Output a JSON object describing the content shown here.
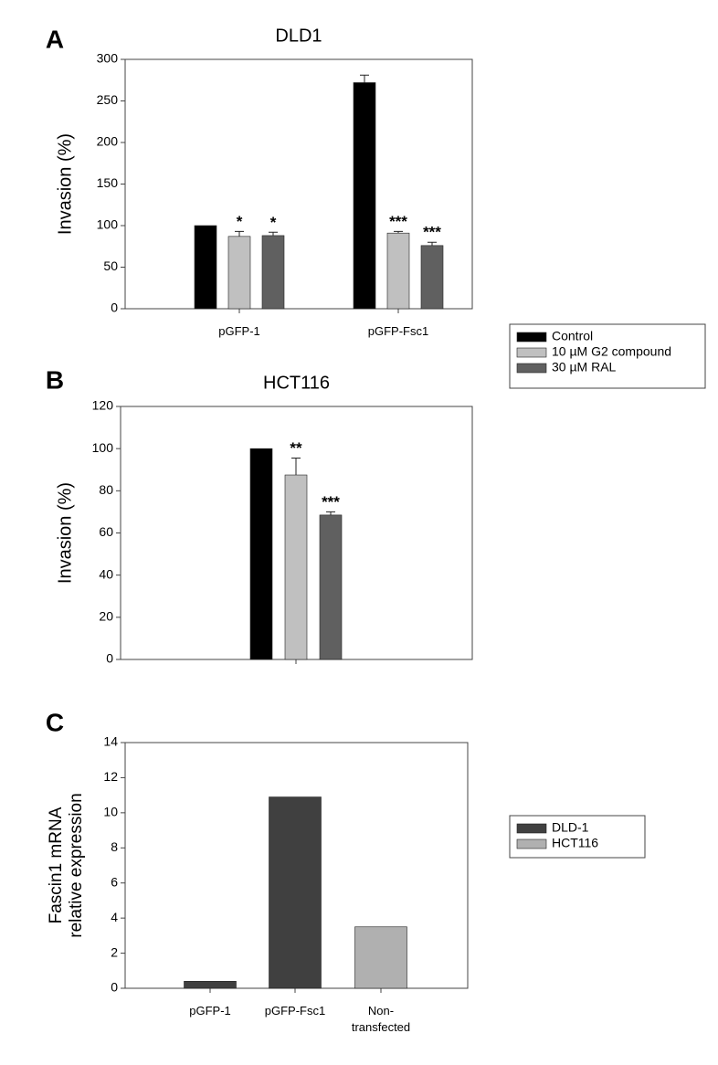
{
  "chart_data": [
    {
      "type": "bar",
      "panel_label": "A",
      "title": "DLD1",
      "y_label": "Invasion (%)",
      "categories": [
        "pGFP-1",
        "pGFP-Fsc1"
      ],
      "series": [
        {
          "name": "Control",
          "color": "#000000",
          "values": [
            100,
            272
          ],
          "errors": [
            null,
            9
          ],
          "stars": [
            null,
            null
          ]
        },
        {
          "name": "10 µM G2 compound",
          "color": "#c0c0c0",
          "values": [
            87,
            91
          ],
          "errors": [
            6,
            2
          ],
          "stars": [
            "*",
            "***"
          ]
        },
        {
          "name": "30 µM RAL",
          "color": "#606060",
          "values": [
            88,
            76
          ],
          "errors": [
            4,
            4
          ],
          "stars": [
            "*",
            "***"
          ]
        }
      ],
      "ylim": [
        0,
        300
      ],
      "yticks": [
        0,
        50,
        100,
        150,
        200,
        250,
        300
      ]
    },
    {
      "type": "bar",
      "panel_label": "B",
      "title": "HCT116",
      "y_label": "Invasion (%)",
      "categories": [
        null
      ],
      "series": [
        {
          "color": "#000000",
          "values": [
            100
          ],
          "errors": [
            null
          ],
          "stars": [
            null
          ]
        },
        {
          "color": "#c0c0c0",
          "values": [
            87.5
          ],
          "errors": [
            8
          ],
          "stars": [
            "**"
          ]
        },
        {
          "color": "#606060",
          "values": [
            68.5
          ],
          "errors": [
            1.5
          ],
          "stars": [
            "***"
          ]
        }
      ],
      "ylim": [
        0,
        120
      ],
      "yticks": [
        0,
        20,
        40,
        60,
        80,
        100,
        120
      ]
    },
    {
      "type": "bar",
      "panel_label": "C",
      "y_label": [
        "Fascin1 mRNA",
        "relative expression"
      ],
      "categories": [
        "pGFP-1",
        "pGFP-Fsc1",
        "Non-transfected"
      ],
      "series": [
        {
          "name": "DLD-1",
          "color": "#404040",
          "values": [
            0.4,
            10.9,
            null
          ]
        },
        {
          "name": "HCT116",
          "color": "#b0b0b0",
          "values": [
            null,
            null,
            3.5
          ]
        }
      ],
      "ylim": [
        0,
        14
      ],
      "yticks": [
        0,
        2,
        4,
        6,
        8,
        10,
        12,
        14
      ]
    }
  ]
}
